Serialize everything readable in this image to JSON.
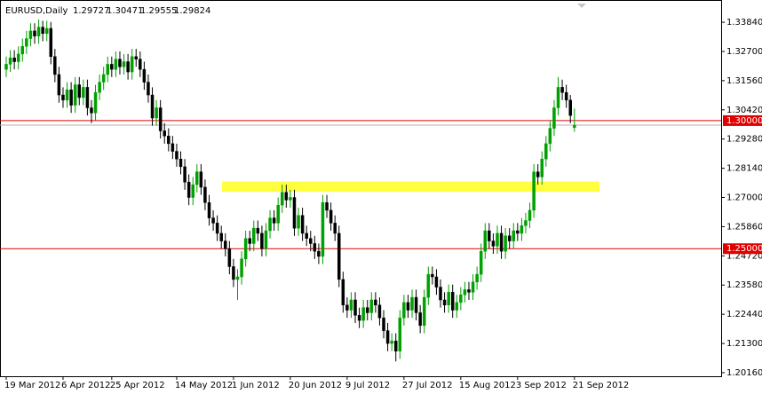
{
  "chart_data": {
    "type": "candlestick",
    "title": "EURUSD,Daily",
    "header_values": [
      1.29727,
      1.30471,
      1.29555,
      1.29824
    ],
    "up_color": "#00a000",
    "down_color": "#000000",
    "open": [
      1.32,
      1.322,
      1.3245,
      1.323,
      1.326,
      1.329,
      1.332,
      1.335,
      1.333,
      1.3365,
      1.334,
      1.336,
      1.325,
      1.318,
      1.31,
      1.308,
      1.312,
      1.306,
      1.314,
      1.309,
      1.313,
      1.305,
      1.303,
      1.311,
      1.315,
      1.318,
      1.322,
      1.32,
      1.324,
      1.321,
      1.323,
      1.319,
      1.325,
      1.324,
      1.32,
      1.315,
      1.31,
      1.301,
      1.305,
      1.296,
      1.294,
      1.291,
      1.288,
      1.285,
      1.282,
      1.276,
      1.27,
      1.275,
      1.28,
      1.274,
      1.268,
      1.262,
      1.26,
      1.256,
      1.253,
      1.25,
      1.243,
      1.238,
      1.239,
      1.246,
      1.254,
      1.252,
      1.258,
      1.256,
      1.25,
      1.257,
      1.262,
      1.26,
      1.267,
      1.272,
      1.269,
      1.27,
      1.258,
      1.263,
      1.256,
      1.254,
      1.252,
      1.249,
      1.247,
      1.268,
      1.265,
      1.26,
      1.256,
      1.238,
      1.228,
      1.226,
      1.23,
      1.224,
      1.222,
      1.227,
      1.225,
      1.23,
      1.228,
      1.223,
      1.218,
      1.213,
      1.214,
      1.21,
      1.223,
      1.229,
      1.226,
      1.231,
      1.225,
      1.22,
      1.231,
      1.24,
      1.239,
      1.235,
      1.23,
      1.228,
      1.233,
      1.226,
      1.229,
      1.232,
      1.234,
      1.233,
      1.237,
      1.24,
      1.249,
      1.257,
      1.253,
      1.251,
      1.256,
      1.249,
      1.255,
      1.253,
      1.257,
      1.256,
      1.259,
      1.261,
      1.265,
      1.28,
      1.278,
      1.285,
      1.291,
      1.297,
      1.305,
      1.313,
      1.311,
      1.308,
      1.2973
    ],
    "high": [
      1.325,
      1.3275,
      1.3275,
      1.329,
      1.332,
      1.335,
      1.338,
      1.338,
      1.3395,
      1.339,
      1.339,
      1.3385,
      1.328,
      1.321,
      1.313,
      1.315,
      1.315,
      1.317,
      1.317,
      1.316,
      1.316,
      1.308,
      1.314,
      1.318,
      1.321,
      1.325,
      1.325,
      1.327,
      1.327,
      1.326,
      1.326,
      1.328,
      1.328,
      1.327,
      1.323,
      1.318,
      1.313,
      1.308,
      1.308,
      1.299,
      1.297,
      1.294,
      1.291,
      1.288,
      1.285,
      1.279,
      1.278,
      1.283,
      1.283,
      1.277,
      1.271,
      1.265,
      1.263,
      1.259,
      1.256,
      1.253,
      1.246,
      1.242,
      1.249,
      1.257,
      1.257,
      1.261,
      1.261,
      1.259,
      1.26,
      1.265,
      1.265,
      1.27,
      1.275,
      1.275,
      1.273,
      1.273,
      1.266,
      1.266,
      1.259,
      1.257,
      1.255,
      1.252,
      1.271,
      1.271,
      1.268,
      1.263,
      1.259,
      1.241,
      1.231,
      1.233,
      1.233,
      1.227,
      1.23,
      1.23,
      1.233,
      1.233,
      1.231,
      1.226,
      1.221,
      1.217,
      1.217,
      1.226,
      1.232,
      1.232,
      1.234,
      1.234,
      1.228,
      1.234,
      1.243,
      1.243,
      1.242,
      1.238,
      1.233,
      1.236,
      1.236,
      1.232,
      1.235,
      1.237,
      1.237,
      1.24,
      1.243,
      1.252,
      1.26,
      1.26,
      1.256,
      1.259,
      1.259,
      1.258,
      1.258,
      1.26,
      1.26,
      1.262,
      1.264,
      1.268,
      1.283,
      1.283,
      1.288,
      1.294,
      1.3,
      1.308,
      1.317,
      1.316,
      1.314,
      1.31,
      1.3047
    ],
    "low": [
      1.317,
      1.319,
      1.32,
      1.32,
      1.323,
      1.326,
      1.329,
      1.33,
      1.33,
      1.331,
      1.331,
      1.322,
      1.315,
      1.307,
      1.305,
      1.305,
      1.303,
      1.303,
      1.306,
      1.306,
      1.302,
      1.299,
      1.3,
      1.308,
      1.312,
      1.315,
      1.317,
      1.317,
      1.318,
      1.318,
      1.316,
      1.316,
      1.321,
      1.317,
      1.312,
      1.307,
      1.298,
      1.298,
      1.293,
      1.291,
      1.288,
      1.285,
      1.282,
      1.279,
      1.273,
      1.267,
      1.267,
      1.272,
      1.271,
      1.265,
      1.259,
      1.257,
      1.253,
      1.25,
      1.247,
      1.24,
      1.235,
      1.23,
      1.236,
      1.243,
      1.249,
      1.249,
      1.253,
      1.247,
      1.247,
      1.254,
      1.257,
      1.257,
      1.264,
      1.266,
      1.266,
      1.255,
      1.255,
      1.253,
      1.251,
      1.249,
      1.246,
      1.244,
      1.244,
      1.262,
      1.257,
      1.253,
      1.235,
      1.225,
      1.223,
      1.223,
      1.221,
      1.219,
      1.219,
      1.222,
      1.222,
      1.225,
      1.22,
      1.215,
      1.21,
      1.21,
      1.206,
      1.207,
      1.22,
      1.223,
      1.223,
      1.222,
      1.217,
      1.217,
      1.228,
      1.236,
      1.232,
      1.227,
      1.225,
      1.225,
      1.223,
      1.223,
      1.226,
      1.229,
      1.23,
      1.23,
      1.234,
      1.237,
      1.246,
      1.25,
      1.248,
      1.248,
      1.246,
      1.246,
      1.25,
      1.25,
      1.253,
      1.253,
      1.256,
      1.258,
      1.262,
      1.275,
      1.275,
      1.282,
      1.288,
      1.294,
      1.302,
      1.308,
      1.305,
      1.299,
      1.2956
    ],
    "close": [
      1.322,
      1.3245,
      1.323,
      1.326,
      1.329,
      1.332,
      1.335,
      1.333,
      1.3365,
      1.334,
      1.336,
      1.325,
      1.318,
      1.31,
      1.308,
      1.312,
      1.306,
      1.314,
      1.309,
      1.313,
      1.305,
      1.303,
      1.311,
      1.315,
      1.318,
      1.322,
      1.32,
      1.324,
      1.321,
      1.323,
      1.319,
      1.325,
      1.324,
      1.32,
      1.315,
      1.31,
      1.301,
      1.305,
      1.296,
      1.294,
      1.291,
      1.288,
      1.285,
      1.282,
      1.276,
      1.27,
      1.275,
      1.28,
      1.274,
      1.268,
      1.262,
      1.26,
      1.256,
      1.253,
      1.25,
      1.243,
      1.238,
      1.239,
      1.246,
      1.254,
      1.252,
      1.258,
      1.256,
      1.25,
      1.257,
      1.262,
      1.26,
      1.267,
      1.272,
      1.269,
      1.27,
      1.258,
      1.263,
      1.256,
      1.254,
      1.252,
      1.249,
      1.247,
      1.268,
      1.265,
      1.26,
      1.256,
      1.238,
      1.228,
      1.226,
      1.23,
      1.224,
      1.222,
      1.227,
      1.225,
      1.23,
      1.228,
      1.223,
      1.218,
      1.213,
      1.214,
      1.21,
      1.223,
      1.229,
      1.226,
      1.231,
      1.225,
      1.22,
      1.231,
      1.24,
      1.239,
      1.235,
      1.23,
      1.228,
      1.233,
      1.226,
      1.229,
      1.232,
      1.234,
      1.233,
      1.237,
      1.24,
      1.249,
      1.257,
      1.253,
      1.251,
      1.256,
      1.249,
      1.255,
      1.253,
      1.257,
      1.256,
      1.259,
      1.261,
      1.265,
      1.28,
      1.278,
      1.285,
      1.291,
      1.297,
      1.305,
      1.313,
      1.311,
      1.308,
      1.302,
      1.2982
    ],
    "ylim": [
      1.2002,
      1.3457
    ],
    "yticks": [
      {
        "value": 1.3384,
        "label": "1.33840"
      },
      {
        "value": 1.327,
        "label": "1.32700"
      },
      {
        "value": 1.3156,
        "label": "1.31560"
      },
      {
        "value": 1.3042,
        "label": "1.30420"
      },
      {
        "value": 1.2928,
        "label": "1.29280"
      },
      {
        "value": 1.2814,
        "label": "1.28140"
      },
      {
        "value": 1.27,
        "label": "1.27000"
      },
      {
        "value": 1.2586,
        "label": "1.25860"
      },
      {
        "value": 1.2472,
        "label": "1.24720"
      },
      {
        "value": 1.2358,
        "label": "1.23580"
      },
      {
        "value": 1.2244,
        "label": "1.22440"
      },
      {
        "value": 1.213,
        "label": "1.21300"
      },
      {
        "value": 1.2016,
        "label": "1.20160"
      }
    ],
    "xticks": [
      {
        "value": 0,
        "label": "19 Mar 2012"
      },
      {
        "value": 14,
        "label": "6 Apr 2012"
      },
      {
        "value": 26,
        "label": "25 Apr 2012"
      },
      {
        "value": 42,
        "label": "14 May 2012"
      },
      {
        "value": 56,
        "label": "1 Jun 2012"
      },
      {
        "value": 70,
        "label": "20 Jun 2012"
      },
      {
        "value": 84,
        "label": "9 Jul 2012"
      },
      {
        "value": 98,
        "label": "27 Jul 2012"
      },
      {
        "value": 112,
        "label": "15 Aug 2012"
      },
      {
        "value": 126,
        "label": "3 Sep 2012"
      },
      {
        "value": 140,
        "label": "21 Sep 2012"
      }
    ],
    "hlines": [
      {
        "value": 1.3,
        "label": "1.30000",
        "color": "#e00000"
      },
      {
        "value": 1.25,
        "label": "1.25000",
        "color": "#e00000"
      }
    ],
    "last_price": {
      "value": 1.29824,
      "color": "#b0b0b0"
    },
    "zone": {
      "low": 1.2722,
      "high": 1.2762,
      "color": "#ffff40"
    }
  }
}
